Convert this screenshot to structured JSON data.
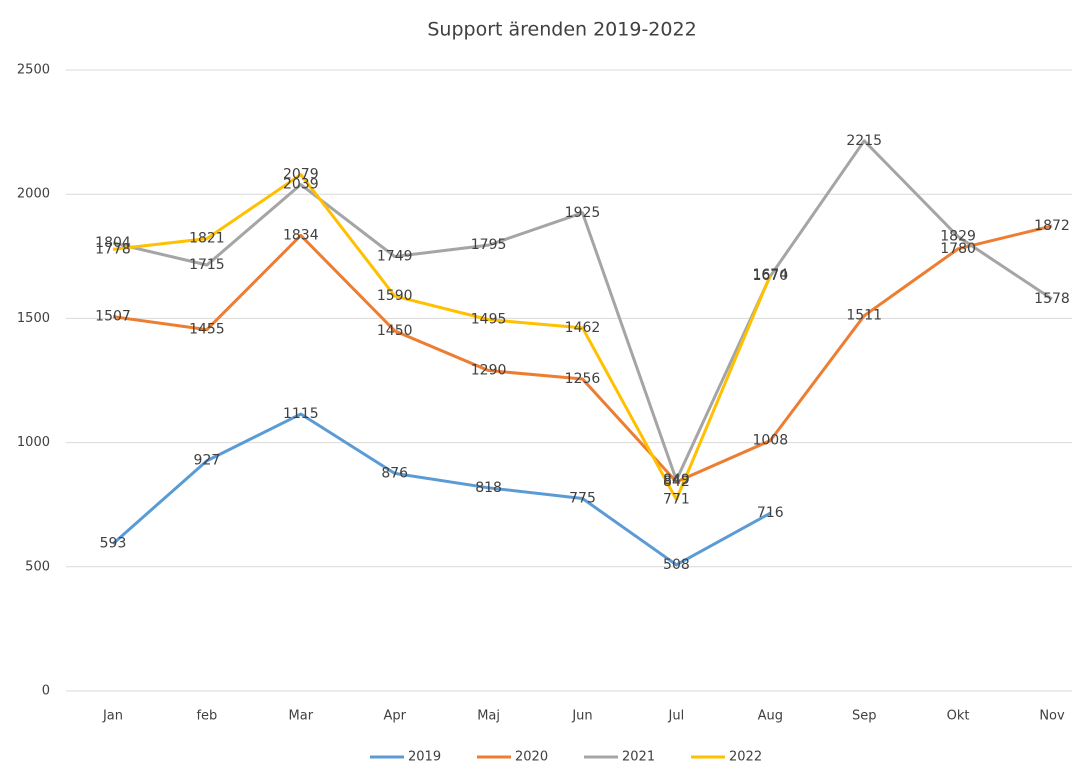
{
  "chart_data": {
    "type": "line",
    "title": "Support ärenden 2019-2022",
    "categories": [
      "Jan",
      "feb",
      "Mar",
      "Apr",
      "Maj",
      "Jun",
      "Jul",
      "Aug",
      "Sep",
      "Okt",
      "Nov"
    ],
    "series": [
      {
        "name": "2019",
        "color": "#5b9bd5",
        "values": [
          593,
          927,
          1115,
          876,
          818,
          775,
          508,
          716,
          null,
          null,
          null
        ]
      },
      {
        "name": "2020",
        "color": "#ed7d31",
        "values": [
          1507,
          1455,
          1834,
          1450,
          1290,
          1256,
          842,
          1008,
          1511,
          1780,
          1872
        ]
      },
      {
        "name": "2021",
        "color": "#a5a5a5",
        "values": [
          1804,
          1715,
          2039,
          1749,
          1795,
          1925,
          849,
          1670,
          2215,
          1829,
          1578
        ]
      },
      {
        "name": "2022",
        "color": "#ffc000",
        "values": [
          1778,
          1821,
          2079,
          1590,
          1495,
          1462,
          771,
          1674,
          null,
          null,
          null
        ]
      }
    ],
    "ylim": [
      0,
      2500
    ],
    "yticks": [
      0,
      500,
      1000,
      1500,
      2000,
      2500
    ],
    "grid": true,
    "legend": "bottom"
  }
}
